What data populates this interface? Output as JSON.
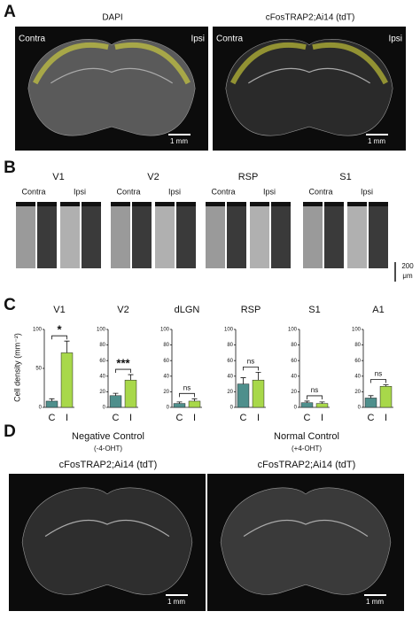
{
  "panels": {
    "a": {
      "label": "A",
      "left": {
        "title": "DAPI",
        "contra": "Contra",
        "ipsi": "Ipsi",
        "scale": "1 mm"
      },
      "right": {
        "title": "cFosTRAP2;Ai14 (tdT)",
        "contra": "Contra",
        "ipsi": "Ipsi",
        "scale": "1 mm"
      }
    },
    "b": {
      "label": "B",
      "regions": [
        {
          "name": "V1",
          "contra": "Contra",
          "ipsi": "Ipsi"
        },
        {
          "name": "V2",
          "contra": "Contra",
          "ipsi": "Ipsi"
        },
        {
          "name": "RSP",
          "contra": "Contra",
          "ipsi": "Ipsi"
        },
        {
          "name": "S1",
          "contra": "Contra",
          "ipsi": "Ipsi"
        }
      ],
      "scale": [
        "200",
        "μm"
      ]
    },
    "c": {
      "label": "C",
      "y_label": "Cell density (mm⁻²)"
    },
    "d": {
      "label": "D",
      "left": {
        "title": "Negative Control",
        "subtitle": "(-4-OHT)",
        "line": "cFosTRAP2;Ai14 (tdT)",
        "scale": "1 mm"
      },
      "right": {
        "title": "Normal Control",
        "subtitle": "(+4-OHT)",
        "line": "cFosTRAP2;Ai14 (tdT)",
        "scale": "1 mm"
      }
    }
  },
  "chart_data": [
    {
      "type": "bar",
      "title": "V1",
      "categories": [
        "C",
        "I"
      ],
      "values": [
        8,
        70
      ],
      "errors": [
        3,
        15
      ],
      "colors": [
        "#4e8f8c",
        "#a8d84a"
      ],
      "ylim": [
        0,
        100
      ],
      "yticks": [
        0,
        50,
        100
      ],
      "significance": "*"
    },
    {
      "type": "bar",
      "title": "V2",
      "categories": [
        "C",
        "I"
      ],
      "values": [
        15,
        35
      ],
      "errors": [
        3,
        7
      ],
      "colors": [
        "#4e8f8c",
        "#a8d84a"
      ],
      "ylim": [
        0,
        100
      ],
      "yticks": [
        0,
        20,
        40,
        60,
        80,
        100
      ],
      "significance": "***"
    },
    {
      "type": "bar",
      "title": "dLGN",
      "categories": [
        "C",
        "I"
      ],
      "values": [
        5,
        8
      ],
      "errors": [
        2,
        3
      ],
      "colors": [
        "#4e8f8c",
        "#a8d84a"
      ],
      "ylim": [
        0,
        100
      ],
      "yticks": [
        0,
        20,
        40,
        60,
        80,
        100
      ],
      "significance": "ns"
    },
    {
      "type": "bar",
      "title": "RSP",
      "categories": [
        "C",
        "I"
      ],
      "values": [
        30,
        35
      ],
      "errors": [
        8,
        10
      ],
      "colors": [
        "#4e8f8c",
        "#a8d84a"
      ],
      "ylim": [
        0,
        100
      ],
      "yticks": [
        0,
        20,
        40,
        60,
        80,
        100
      ],
      "significance": "ns"
    },
    {
      "type": "bar",
      "title": "S1",
      "categories": [
        "C",
        "I"
      ],
      "values": [
        6,
        5
      ],
      "errors": [
        2,
        2
      ],
      "colors": [
        "#4e8f8c",
        "#a8d84a"
      ],
      "ylim": [
        0,
        100
      ],
      "yticks": [
        0,
        20,
        40,
        60,
        80,
        100
      ],
      "significance": "ns"
    },
    {
      "type": "bar",
      "title": "A1",
      "categories": [
        "C",
        "I"
      ],
      "values": [
        12,
        27
      ],
      "errors": [
        3,
        2
      ],
      "colors": [
        "#4e8f8c",
        "#a8d84a"
      ],
      "ylim": [
        0,
        100
      ],
      "yticks": [
        0,
        20,
        40,
        60,
        80,
        100
      ],
      "significance": "ns"
    }
  ]
}
